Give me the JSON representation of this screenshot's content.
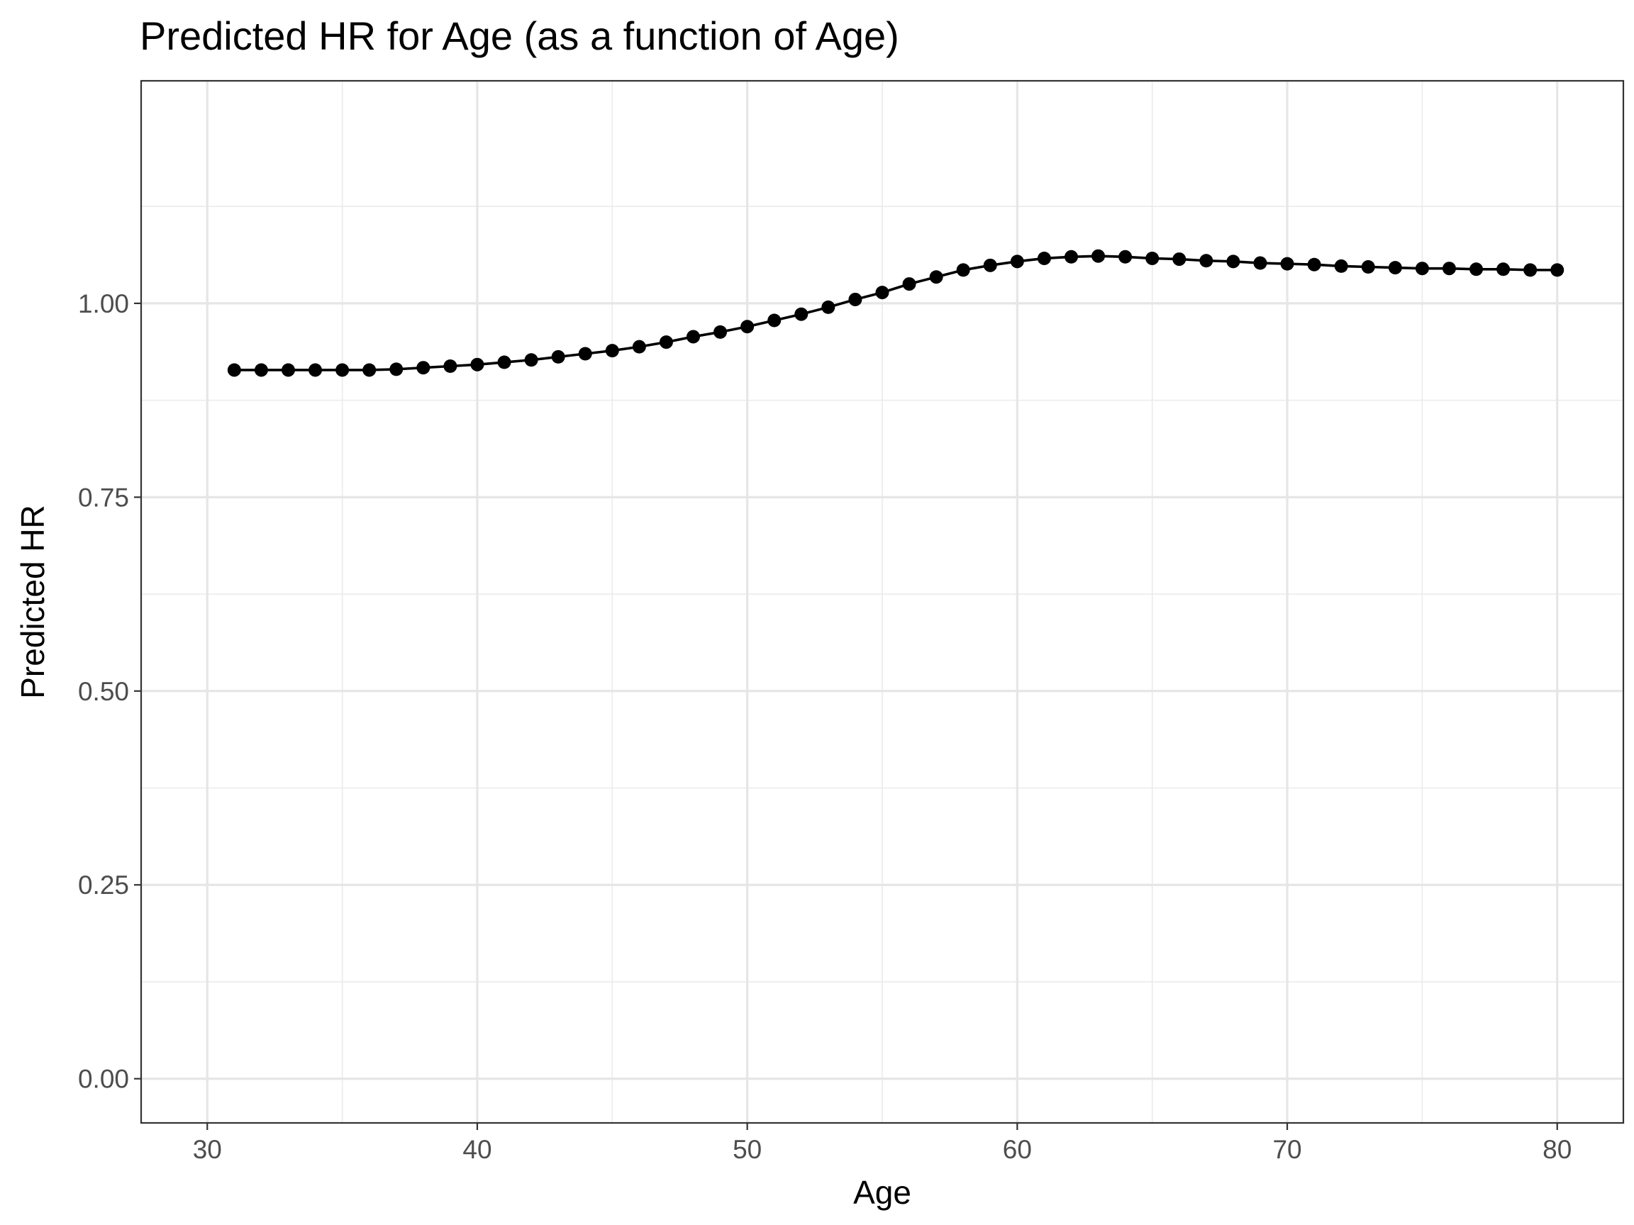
{
  "chart_data": {
    "type": "line",
    "title": "Predicted HR for Age (as a function of Age)",
    "xlabel": "Age",
    "ylabel": "Predicted HR",
    "xlim": [
      27.55,
      82.45
    ],
    "ylim": [
      -0.057,
      1.287
    ],
    "x_ticks": [
      30,
      40,
      50,
      60,
      70,
      80
    ],
    "x_tick_labels": [
      "30",
      "40",
      "50",
      "60",
      "70",
      "80"
    ],
    "y_ticks": [
      0,
      0.25,
      0.5,
      0.75,
      1.0
    ],
    "y_tick_labels": [
      "0.00",
      "0.25",
      "0.50",
      "0.75",
      "1.00"
    ],
    "grid": true,
    "markers": true,
    "series": [
      {
        "color": "#000000",
        "x": [
          31,
          32,
          33,
          34,
          35,
          36,
          37,
          38,
          39,
          40,
          41,
          42,
          43,
          44,
          45,
          46,
          47,
          48,
          49,
          50,
          51,
          52,
          53,
          54,
          55,
          56,
          57,
          58,
          59,
          60,
          61,
          62,
          63,
          64,
          65,
          66,
          67,
          68,
          69,
          70,
          71,
          72,
          73,
          74,
          75,
          76,
          77,
          78,
          79,
          80
        ],
        "y": [
          0.914,
          0.914,
          0.914,
          0.914,
          0.914,
          0.914,
          0.915,
          0.917,
          0.919,
          0.921,
          0.924,
          0.927,
          0.931,
          0.935,
          0.939,
          0.944,
          0.95,
          0.957,
          0.963,
          0.97,
          0.978,
          0.986,
          0.995,
          1.005,
          1.014,
          1.025,
          1.034,
          1.043,
          1.049,
          1.054,
          1.058,
          1.06,
          1.061,
          1.06,
          1.058,
          1.057,
          1.055,
          1.054,
          1.052,
          1.051,
          1.05,
          1.048,
          1.047,
          1.046,
          1.045,
          1.045,
          1.044,
          1.044,
          1.043,
          1.043
        ]
      }
    ]
  }
}
